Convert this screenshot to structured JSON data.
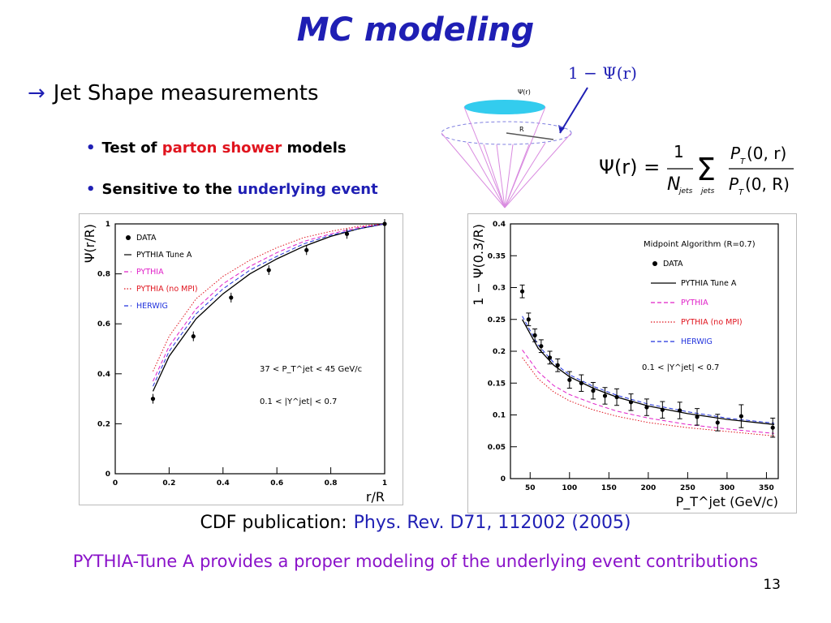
{
  "slide": {
    "title": "MC modeling",
    "bullet_main": "Jet Shape measurements",
    "sub1": {
      "pre": "Test of",
      "highlight": "parton shower",
      "post": "models"
    },
    "sub2": {
      "pre": "Sensitive to the",
      "highlight": "underlying event"
    },
    "cone_label": "1 − Ψ(r)",
    "cone_inner_label": "Ψ(r)",
    "cone_radius_label": "R",
    "formula": {
      "lhs": "Ψ(r) =",
      "num": "1",
      "den": "N",
      "den_sub": "jets",
      "sum_sub": "jets",
      "frac_num": "P",
      "frac_num_sub": "T",
      "frac_num_arg": "(0, r)",
      "frac_den": "P",
      "frac_den_sub": "T",
      "frac_den_arg": "(0, R)"
    },
    "pub_label": "CDF publication:",
    "pub_ref": "Phys. Rev. D71, 112002 (2005)",
    "conclusion": "PYTHIA-Tune A provides a proper modeling of the underlying event contributions",
    "page_number": "13",
    "colors": {
      "title": "#1f1fb4",
      "highlight_red": "#e0141e",
      "highlight_blue": "#1f1fb4",
      "conclusion": "#8a12c9",
      "cone_top": "#33ccee",
      "cone_lines": "#d98be0"
    }
  },
  "chart_data": [
    {
      "type": "line",
      "ylabel": "Ψ(r/R)",
      "xlabel": "r/R",
      "xlim": [
        0,
        1
      ],
      "ylim": [
        0,
        1
      ],
      "xticks": [
        "0",
        "0.2",
        "0.4",
        "0.6",
        "0.8",
        "1"
      ],
      "yticks": [
        "0",
        "0.2",
        "0.4",
        "0.6",
        "0.8",
        "1"
      ],
      "legend": [
        "DATA",
        "PYTHIA Tune A",
        "PYTHIA",
        "PYTHIA (no MPI)",
        "HERWIG"
      ],
      "legend_placement": "top-left",
      "annotations": [
        "37 < P_T^jet < 45 GeV/c",
        "0.1 < |Y^jet| < 0.7"
      ],
      "data": {
        "x": [
          0.14,
          0.29,
          0.43,
          0.57,
          0.71,
          0.86,
          1.0
        ],
        "y": [
          0.3,
          0.55,
          0.705,
          0.815,
          0.895,
          0.96,
          1.0
        ]
      },
      "series": [
        {
          "name": "PYTHIA Tune A",
          "color": "#000000",
          "style": "solid",
          "x": [
            0.14,
            0.2,
            0.3,
            0.4,
            0.5,
            0.6,
            0.7,
            0.8,
            0.9,
            1.0
          ],
          "y": [
            0.33,
            0.47,
            0.62,
            0.72,
            0.8,
            0.86,
            0.91,
            0.95,
            0.98,
            1.0
          ]
        },
        {
          "name": "PYTHIA",
          "color": "#e020c8",
          "style": "dashed",
          "x": [
            0.14,
            0.2,
            0.3,
            0.4,
            0.5,
            0.6,
            0.7,
            0.8,
            0.9,
            1.0
          ],
          "y": [
            0.37,
            0.51,
            0.66,
            0.76,
            0.83,
            0.885,
            0.93,
            0.96,
            0.985,
            1.0
          ]
        },
        {
          "name": "PYTHIA (no MPI)",
          "color": "#e0141e",
          "style": "dotted",
          "x": [
            0.14,
            0.2,
            0.3,
            0.4,
            0.5,
            0.6,
            0.7,
            0.8,
            0.9,
            1.0
          ],
          "y": [
            0.41,
            0.55,
            0.7,
            0.79,
            0.855,
            0.905,
            0.945,
            0.97,
            0.99,
            1.0
          ]
        },
        {
          "name": "HERWIG",
          "color": "#2233dd",
          "style": "dashed",
          "x": [
            0.14,
            0.2,
            0.3,
            0.4,
            0.5,
            0.6,
            0.7,
            0.8,
            0.9,
            1.0
          ],
          "y": [
            0.35,
            0.49,
            0.64,
            0.74,
            0.815,
            0.87,
            0.92,
            0.955,
            0.98,
            1.0
          ]
        }
      ]
    },
    {
      "type": "line",
      "ylabel": "1 − Ψ(0.3/R)",
      "xlabel": "P_T^jet (GeV/c)",
      "xlim": [
        25,
        365
      ],
      "ylim": [
        0,
        0.4
      ],
      "xticks": [
        "50",
        "100",
        "150",
        "200",
        "250",
        "300",
        "350"
      ],
      "yticks": [
        "0",
        "0.05",
        "0.1",
        "0.15",
        "0.2",
        "0.25",
        "0.3",
        "0.35",
        "0.4"
      ],
      "legend_title": "Midpoint Algorithm (R=0.7)",
      "legend": [
        "DATA",
        "PYTHIA Tune A",
        "PYTHIA",
        "PYTHIA (no MPI)",
        "HERWIG"
      ],
      "legend_placement": "top-right",
      "annotations": [
        "0.1 < |Y^jet| < 0.7"
      ],
      "data": {
        "x": [
          40,
          48,
          56,
          64,
          75,
          85,
          100,
          115,
          130,
          145,
          160,
          178,
          198,
          218,
          240,
          262,
          288,
          318,
          358
        ],
        "y": [
          0.294,
          0.25,
          0.225,
          0.208,
          0.19,
          0.178,
          0.155,
          0.15,
          0.138,
          0.13,
          0.128,
          0.12,
          0.112,
          0.108,
          0.107,
          0.097,
          0.088,
          0.098,
          0.08
        ],
        "err": [
          0.01,
          0.01,
          0.01,
          0.01,
          0.01,
          0.01,
          0.013,
          0.013,
          0.013,
          0.013,
          0.013,
          0.013,
          0.013,
          0.013,
          0.013,
          0.013,
          0.013,
          0.018,
          0.015
        ]
      },
      "series": [
        {
          "name": "PYTHIA Tune A",
          "color": "#000000",
          "style": "solid",
          "x": [
            40,
            60,
            80,
            100,
            130,
            160,
            200,
            250,
            300,
            360
          ],
          "y": [
            0.25,
            0.205,
            0.178,
            0.16,
            0.142,
            0.128,
            0.114,
            0.102,
            0.093,
            0.085
          ]
        },
        {
          "name": "PYTHIA",
          "color": "#e020c8",
          "style": "dashed",
          "x": [
            40,
            60,
            80,
            100,
            130,
            160,
            200,
            250,
            300,
            360
          ],
          "y": [
            0.202,
            0.168,
            0.146,
            0.132,
            0.118,
            0.106,
            0.095,
            0.085,
            0.078,
            0.071
          ]
        },
        {
          "name": "PYTHIA (no MPI)",
          "color": "#e0141e",
          "style": "dotted",
          "x": [
            40,
            60,
            80,
            100,
            130,
            160,
            200,
            250,
            300,
            360
          ],
          "y": [
            0.19,
            0.157,
            0.136,
            0.122,
            0.108,
            0.098,
            0.088,
            0.08,
            0.074,
            0.067
          ]
        },
        {
          "name": "HERWIG",
          "color": "#2233dd",
          "style": "dashed",
          "x": [
            40,
            60,
            80,
            100,
            130,
            160,
            200,
            250,
            300,
            360
          ],
          "y": [
            0.255,
            0.21,
            0.182,
            0.163,
            0.145,
            0.131,
            0.117,
            0.105,
            0.095,
            0.087
          ]
        }
      ]
    }
  ]
}
